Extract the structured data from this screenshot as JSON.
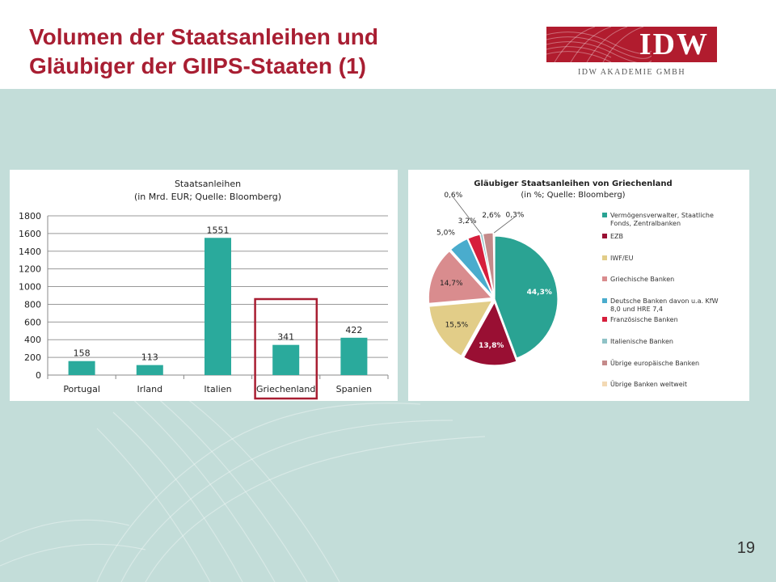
{
  "slide": {
    "title_line1": "Volumen der Staatsanleihen und",
    "title_line2": "Gläubiger der GIIPS-Staaten (1)",
    "page_number": "19"
  },
  "logo": {
    "text": "IDW",
    "subtitle": "IDW AKADEMIE GMBH",
    "color": "#b11c2e"
  },
  "chart_data": [
    {
      "type": "bar",
      "title": "Staatsanleihen",
      "subtitle": "(in Mrd. EUR; Quelle: Bloomberg)",
      "categories": [
        "Portugal",
        "Irland",
        "Italien",
        "Griechenland",
        "Spanien"
      ],
      "values": [
        158,
        113,
        1551,
        341,
        422
      ],
      "value_labels": [
        "158",
        "113",
        "1551",
        "341",
        "422"
      ],
      "ylim": [
        0,
        1800
      ],
      "yticks": [
        "0",
        "200",
        "400",
        "600",
        "800",
        "1000",
        "1200",
        "1400",
        "1600",
        "1800"
      ],
      "grid": true,
      "bar_color": "#2aaa9c",
      "highlight": {
        "category": "Griechenland",
        "color": "#a81e32"
      }
    },
    {
      "type": "pie",
      "title": "Gläubiger Staatsanleihen von Griechenland",
      "subtitle": "(in %; Quelle: Bloomberg)",
      "legend_position": "right",
      "slices": [
        {
          "name": "Vermögensverwalter, Staatliche Fonds, Zentralbanken",
          "value": 44.3,
          "label": "44,3%",
          "color": "#2aa393"
        },
        {
          "name": "EZB",
          "value": 13.8,
          "label": "13,8%",
          "color": "#990f33"
        },
        {
          "name": "IWF/EU",
          "value": 15.5,
          "label": "15,5%",
          "color": "#e2cd88"
        },
        {
          "name": "Griechische Banken",
          "value": 14.7,
          "label": "14,7%",
          "color": "#d98c8e"
        },
        {
          "name": "Deutsche Banken davon u.a. KfW 8,0 und HRE 7,4",
          "value": 5.0,
          "label": "5,0%",
          "color": "#4aaccd"
        },
        {
          "name": "Französische Banken",
          "value": 3.2,
          "label": "3,2%",
          "color": "#d61e3c"
        },
        {
          "name": "Italienische Banken",
          "value": 0.6,
          "label": "0,6%",
          "color": "#8fc2c6"
        },
        {
          "name": "Übrige europäische Banken",
          "value": 2.6,
          "label": "2,6%",
          "color": "#c48a8a"
        },
        {
          "name": "Übrige Banken weltweit",
          "value": 0.3,
          "label": "0,3%",
          "color": "#f3d9b4"
        }
      ]
    }
  ]
}
